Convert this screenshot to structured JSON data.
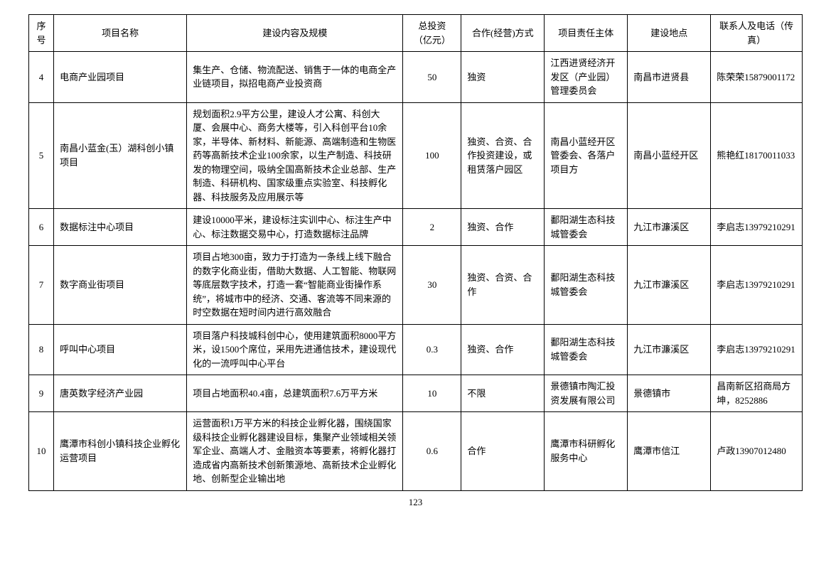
{
  "headers": {
    "seq": "序号",
    "name": "项目名称",
    "desc": "建设内容及规模",
    "invest": "总投资（亿元）",
    "mode": "合作(经营)方式",
    "owner": "项目责任主体",
    "loc": "建设地点",
    "contact": "联系人及电话（传真）"
  },
  "rows": [
    {
      "seq": "4",
      "name": "电商产业园项目",
      "desc": "集生产、仓储、物流配送、销售于一体的电商全产业链项目，拟招电商产业投资商",
      "invest": "50",
      "mode": "独资",
      "owner": "江西进贤经济开发区（产业园）管理委员会",
      "loc": "南昌市进贤县",
      "contact": "陈荣荣15879001172"
    },
    {
      "seq": "5",
      "name": "南昌小蓝金(玉）湖科创小镇项目",
      "desc": "规划面积2.9平方公里，建设人才公寓、科创大厦、会展中心、商务大楼等，引入科创平台10余家，半导体、新材料、新能源、高端制造和生物医药等高新技术企业100余家，以生产制造、科技研发的物理空间，吸纳全国高新技术企业总部、生产制造、科研机构、国家级重点实验室、科技孵化器、科技服务及应用展示等",
      "invest": "100",
      "mode": "独资、合资、合作投资建设，或租赁落户园区",
      "owner": "南昌小蓝经开区管委会、各落户项目方",
      "loc": "南昌小蓝经开区",
      "contact": "熊艳红18170011033"
    },
    {
      "seq": "6",
      "name": "数据标注中心项目",
      "desc": "建设10000平米，建设标注实训中心、标注生产中心、标注数据交易中心，打造数据标注品牌",
      "invest": "2",
      "mode": "独资、合作",
      "owner": "鄱阳湖生态科技城管委会",
      "loc": "九江市濂溪区",
      "contact": "李启志13979210291"
    },
    {
      "seq": "7",
      "name": "数字商业街项目",
      "desc": "项目占地300亩，致力于打造为一条线上线下融合的数字化商业街，借助大数据、人工智能、物联网等底层数字技术，打造一套“智能商业街操作系统”，将城市中的经济、交通、客流等不同来源的时空数据在短时间内进行高效融合",
      "invest": "30",
      "mode": "独资、合资、合作",
      "owner": "鄱阳湖生态科技城管委会",
      "loc": "九江市濂溪区",
      "contact": "李启志13979210291"
    },
    {
      "seq": "8",
      "name": "呼叫中心项目",
      "desc": "项目落户科技城科创中心，使用建筑面积8000平方米，设1500个席位，采用先进通信技术，建设现代化的一流呼叫中心平台",
      "invest": "0.3",
      "mode": "独资、合作",
      "owner": "鄱阳湖生态科技城管委会",
      "loc": "九江市濂溪区",
      "contact": "李启志13979210291"
    },
    {
      "seq": "9",
      "name": "唐英数字经济产业园",
      "desc": "项目占地面积40.4亩，总建筑面积7.6万平方米",
      "invest": "10",
      "mode": "不限",
      "owner": "景德镇市陶汇投资发展有限公司",
      "loc": "景德镇市",
      "contact": "昌南新区招商局方坤，8252886"
    },
    {
      "seq": "10",
      "name": "鹰潭市科创小镇科技企业孵化运营项目",
      "desc": "运营面积1万平方米的科技企业孵化器，围绕国家级科技企业孵化器建设目标，集聚产业领域相关领军企业、高端人才、金融资本等要素，将孵化器打造成省内高新技术创新策源地、高新技术企业孵化地、创新型企业输出地",
      "invest": "0.6",
      "mode": "合作",
      "owner": "鹰潭市科研孵化服务中心",
      "loc": "鹰潭市信江",
      "contact": "卢政13907012480"
    }
  ],
  "pageNumber": "123"
}
